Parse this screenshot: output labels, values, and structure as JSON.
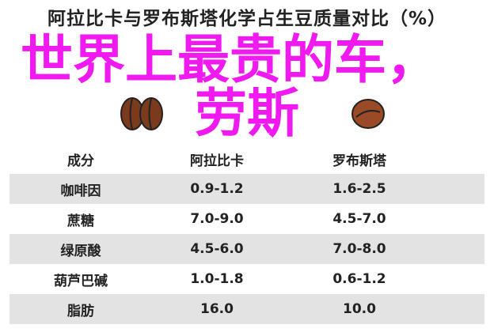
{
  "title": "阿拉比卡与罗布斯塔化学占生豆质量对比（%）",
  "table": {
    "headers": [
      "成分",
      "阿拉比卡",
      "罗布斯塔"
    ],
    "rows": [
      [
        "咖啡因",
        "0.9-1.2",
        "1.6-2.5"
      ],
      [
        "蔗糖",
        "7.0-9.0",
        "4.5-7.0"
      ],
      [
        "绿原酸",
        "4.5-6.0",
        "7.0-8.0"
      ],
      [
        "葫芦巴碱",
        "1.0-1.8",
        "0.6-1.2"
      ],
      [
        "脂肪",
        "16.0",
        "10.0"
      ]
    ]
  },
  "overlay": {
    "line1": "世界上最贵的车，",
    "line2": "劳斯",
    "color": "#f019f0"
  },
  "icons": [
    "arabica-bean-icon",
    "robusta-bean-icon"
  ]
}
